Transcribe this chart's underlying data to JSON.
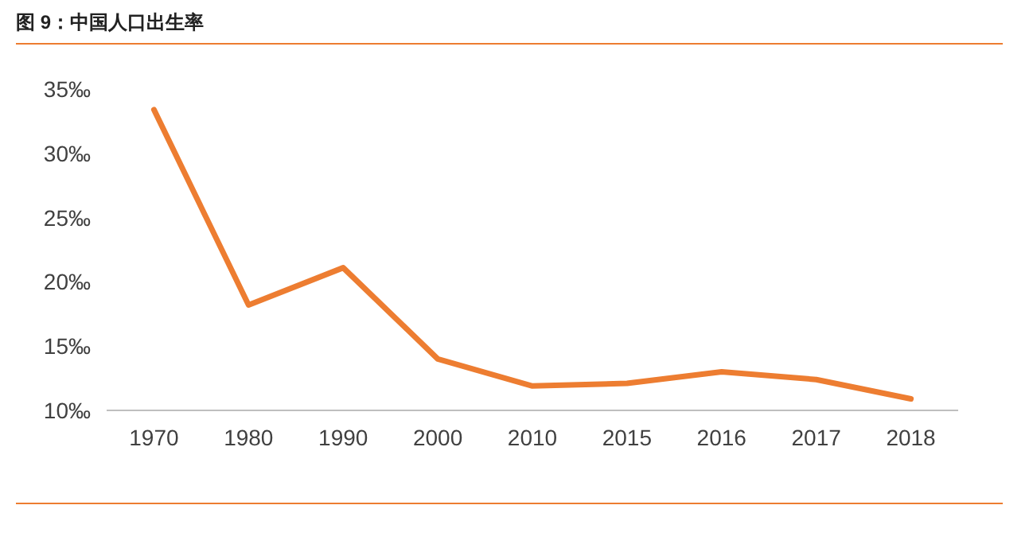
{
  "chart_data": {
    "type": "line",
    "title": "图 9：中国人口出生率",
    "categories": [
      "1970",
      "1980",
      "1990",
      "2000",
      "2010",
      "2015",
      "2016",
      "2017",
      "2018"
    ],
    "series": [
      {
        "color": "#ed7d31",
        "values": [
          33.4,
          18.2,
          21.1,
          14.0,
          11.9,
          12.1,
          13.0,
          12.4,
          10.9
        ]
      }
    ],
    "ylim": [
      10,
      35
    ],
    "yticks": [
      {
        "value": 10,
        "label": "10‰"
      },
      {
        "value": 15,
        "label": "15‰"
      },
      {
        "value": 20,
        "label": "20‰"
      },
      {
        "value": 25,
        "label": "25‰"
      },
      {
        "value": 30,
        "label": "30‰"
      },
      {
        "value": 35,
        "label": "35‰"
      }
    ],
    "grid": false,
    "marker": "none",
    "line_style": "solid"
  }
}
